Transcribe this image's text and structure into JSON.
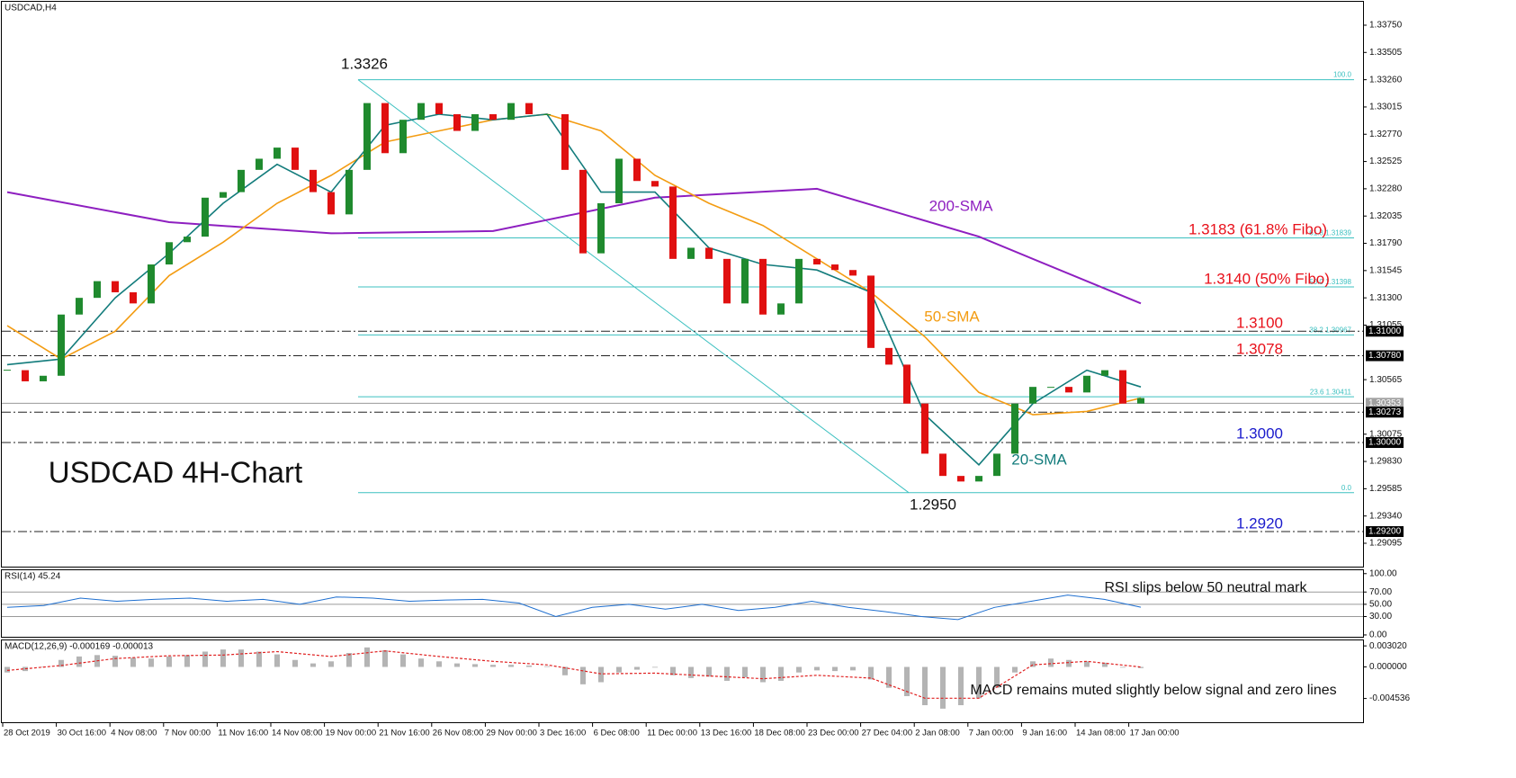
{
  "chart_data": [
    {
      "type": "candlestick",
      "symbol_label": "USDCAD,H4",
      "title": "USDCAD 4H-Chart",
      "up_color": "#1f8a2e",
      "down_color": "#e01010",
      "closes": [
        1.3065,
        1.3055,
        1.306,
        1.3115,
        1.313,
        1.3145,
        1.3135,
        1.3125,
        1.316,
        1.318,
        1.3185,
        1.322,
        1.3225,
        1.3245,
        1.3255,
        1.3265,
        1.3245,
        1.3225,
        1.3205,
        1.3245,
        1.3305,
        1.326,
        1.329,
        1.3305,
        1.3295,
        1.328,
        1.3295,
        1.329,
        1.3305,
        1.3295,
        1.3295,
        1.3245,
        1.317,
        1.3215,
        1.3255,
        1.3235,
        1.323,
        1.3165,
        1.3175,
        1.3165,
        1.3125,
        1.3165,
        1.3115,
        1.3125,
        1.3165,
        1.316,
        1.3155,
        1.315,
        1.3085,
        1.307,
        1.3035,
        1.299,
        1.297,
        1.2965,
        1.297,
        1.299,
        1.3035,
        1.305,
        1.305,
        1.3045,
        1.306,
        1.3065,
        1.3035,
        1.304
      ],
      "ylim": [
        1.28885,
        1.3396
      ],
      "yticks": [
        {
          "value": 1.3375,
          "label": "1.33750"
        },
        {
          "value": 1.33505,
          "label": "1.33505"
        },
        {
          "value": 1.3326,
          "label": "1.33260"
        },
        {
          "value": 1.33015,
          "label": "1.33015"
        },
        {
          "value": 1.3277,
          "label": "1.32770"
        },
        {
          "value": 1.32525,
          "label": "1.32525"
        },
        {
          "value": 1.3228,
          "label": "1.32280"
        },
        {
          "value": 1.32035,
          "label": "1.32035"
        },
        {
          "value": 1.3179,
          "label": "1.31790"
        },
        {
          "value": 1.31545,
          "label": "1.31545"
        },
        {
          "value": 1.313,
          "label": "1.31300"
        },
        {
          "value": 1.31055,
          "label": "1.31055"
        },
        {
          "value": 1.30565,
          "label": "1.30565"
        },
        {
          "value": 1.30075,
          "label": "1.30075"
        },
        {
          "value": 1.2983,
          "label": "1.29830"
        },
        {
          "value": 1.29585,
          "label": "1.29585"
        },
        {
          "value": 1.2934,
          "label": "1.29340"
        },
        {
          "value": 1.29095,
          "label": "1.29095"
        }
      ],
      "series": [
        {
          "name": "200-SMA",
          "color": "#8e1fc0",
          "values": [
            1.3225,
            1.3198,
            1.3188,
            1.319,
            1.322,
            1.3228,
            1.3185,
            1.3125
          ]
        },
        {
          "name": "50-SMA",
          "color": "#f39c12",
          "values": [
            1.3105,
            1.3075,
            1.31,
            1.315,
            1.318,
            1.3215,
            1.324,
            1.327,
            1.328,
            1.329,
            1.3295,
            1.328,
            1.324,
            1.3215,
            1.3195,
            1.3165,
            1.3135,
            1.3095,
            1.3045,
            1.3025,
            1.3028,
            1.304
          ]
        },
        {
          "name": "20-SMA",
          "color": "#137c7c",
          "values": [
            1.307,
            1.3075,
            1.313,
            1.317,
            1.3215,
            1.325,
            1.3225,
            1.3285,
            1.3295,
            1.329,
            1.3295,
            1.3225,
            1.3225,
            1.3175,
            1.316,
            1.3155,
            1.3135,
            1.3025,
            1.298,
            1.3035,
            1.3065,
            1.305
          ]
        }
      ],
      "fibo_color": "#3cc0c0",
      "fibo": [
        {
          "value": 1.3326,
          "label": "100.0"
        },
        {
          "value": 1.31839,
          "label": "61.8 1.31839"
        },
        {
          "value": 1.31398,
          "label": "50.0 1.31398"
        },
        {
          "value": 1.30967,
          "label": "38.2 1.30967"
        },
        {
          "value": 1.30411,
          "label": "23.6 1.30411"
        },
        {
          "value": 1.2955,
          "label": "0.0"
        }
      ],
      "levels": [
        {
          "value": 1.31,
          "label": "1.31000",
          "kind": "dashdot"
        },
        {
          "value": 1.3078,
          "label": "1.30780",
          "kind": "dashdot"
        },
        {
          "value": 1.30353,
          "label": "1.30353",
          "kind": "current"
        },
        {
          "value": 1.30273,
          "label": "1.30273",
          "kind": "dashdot"
        },
        {
          "value": 1.3,
          "label": "1.30000",
          "kind": "dashdot"
        },
        {
          "value": 1.292,
          "label": "1.29200",
          "kind": "dashdot"
        }
      ],
      "annotations": [
        {
          "text": "1.3326",
          "color": "#111111"
        },
        {
          "text": "1.2950",
          "color": "#111111"
        },
        {
          "text": "1.3183 (61.8% Fibo)",
          "color": "#e8101a"
        },
        {
          "text": "1.3140 (50% Fibo)",
          "color": "#e8101a"
        },
        {
          "text": "1.3100",
          "color": "#e8101a"
        },
        {
          "text": "1.3078",
          "color": "#e8101a"
        },
        {
          "text": "1.3000",
          "color": "#1a1acc"
        },
        {
          "text": "1.2920",
          "color": "#1a1acc"
        }
      ]
    },
    {
      "type": "line",
      "label": "RSI(14) 45.24",
      "ylim": [
        -3,
        107
      ],
      "yticks": [
        {
          "value": 100,
          "label": "100.00"
        },
        {
          "value": 70,
          "label": "70.00"
        },
        {
          "value": 50,
          "label": "50.00"
        },
        {
          "value": 30,
          "label": "30.00"
        },
        {
          "value": 0,
          "label": "0.00"
        }
      ],
      "series": [
        {
          "color": "#1e6fd0",
          "values": [
            45,
            48,
            60,
            55,
            58,
            60,
            55,
            58,
            50,
            62,
            60,
            55,
            57,
            58,
            52,
            30,
            45,
            50,
            42,
            50,
            40,
            45,
            55,
            45,
            38,
            30,
            25,
            45,
            55,
            65,
            58,
            45.24
          ]
        }
      ],
      "annotation": "RSI slips below 50 neutral mark"
    },
    {
      "type": "macd",
      "label": "MACD(12,26,9) -0.000169 -0.000013",
      "ylim": [
        -0.00795,
        0.00394
      ],
      "yticks": [
        {
          "value": 0.00302,
          "label": "0.003020"
        },
        {
          "value": 0,
          "label": "0.000000"
        },
        {
          "value": -0.004536,
          "label": "-0.004536"
        }
      ],
      "histogram": {
        "color": "#b4b4b4",
        "values": [
          -0.0008,
          -0.0006,
          0.0,
          0.001,
          0.0015,
          0.0017,
          0.0016,
          0.0013,
          0.0012,
          0.0015,
          0.0017,
          0.0022,
          0.0025,
          0.0025,
          0.0022,
          0.0018,
          0.001,
          0.0005,
          0.0008,
          0.002,
          0.0028,
          0.0024,
          0.0018,
          0.0012,
          0.0008,
          0.0005,
          0.0004,
          0.0003,
          0.0003,
          0.0002,
          0.0001,
          -0.0012,
          -0.0025,
          -0.0022,
          -0.0008,
          -0.0004,
          -0.0001,
          -0.0012,
          -0.0016,
          -0.0014,
          -0.002,
          -0.0015,
          -0.0022,
          -0.002,
          -0.0008,
          -0.0005,
          -0.0006,
          -0.0005,
          -0.0018,
          -0.003,
          -0.0042,
          -0.0055,
          -0.006,
          -0.0055,
          -0.0045,
          -0.003,
          -0.0008,
          0.0008,
          0.0012,
          0.001,
          0.0008,
          0.0006,
          -0.0001,
          -0.000169
        ]
      },
      "signal": {
        "color": "#e02020",
        "values": [
          -0.0005,
          0.0002,
          0.0012,
          0.0016,
          0.0017,
          0.0022,
          0.0015,
          0.0023,
          0.0015,
          0.0008,
          0.0003,
          -0.001,
          -0.0009,
          -0.0013,
          -0.0017,
          -0.0012,
          -0.0016,
          -0.0045,
          -0.0045,
          0.0003,
          0.0008,
          -1.3e-05
        ]
      },
      "annotation": "MACD remains muted slightly below signal and zero lines",
      "x_labels": [
        "28 Oct 2019",
        "30 Oct 16:00",
        "4 Nov 08:00",
        "7 Nov 00:00",
        "11 Nov 16:00",
        "14 Nov 08:00",
        "19 Nov 00:00",
        "21 Nov 16:00",
        "26 Nov 08:00",
        "29 Nov 00:00",
        "3 Dec 16:00",
        "6 Dec 08:00",
        "11 Dec 00:00",
        "13 Dec 16:00",
        "18 Dec 08:00",
        "23 Dec 00:00",
        "27 Dec 04:00",
        "2 Jan 08:00",
        "7 Jan 00:00",
        "9 Jan 16:00",
        "14 Jan 08:00",
        "17 Jan 00:00"
      ]
    }
  ]
}
